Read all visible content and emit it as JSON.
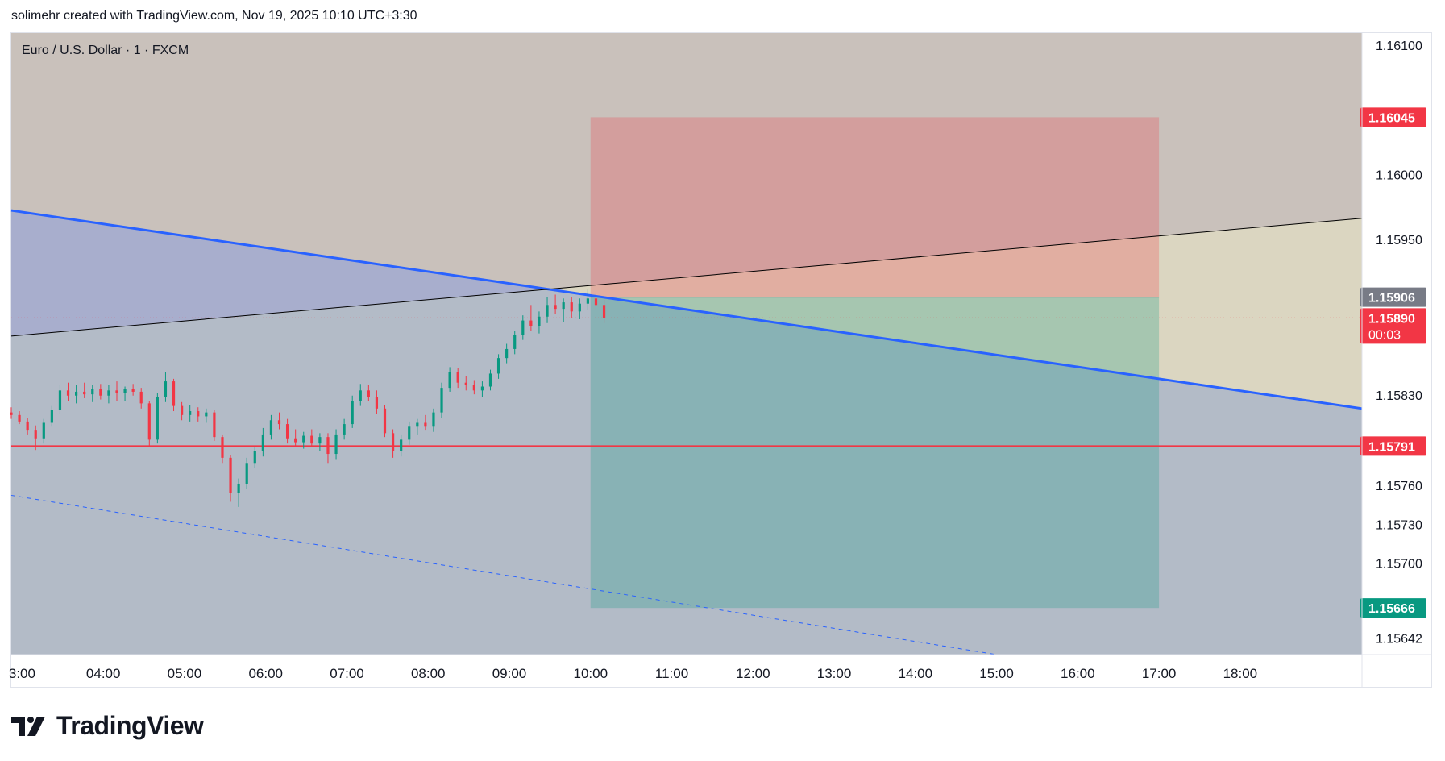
{
  "credit": "solimehr created with TradingView.com, Nov 19, 2025 10:10 UTC+3:30",
  "symbol_label": "Euro / U.S. Dollar · 1 · FXCM",
  "brand": "TradingView",
  "chart_data": {
    "type": "candlestick",
    "instrument": "Euro / U.S. Dollar",
    "interval": "1",
    "source": "FXCM",
    "y_range": [
      1.1563,
      1.1611
    ],
    "x_range": [
      "02:52",
      "19:30"
    ],
    "price_ticks": [
      "1.16100",
      "1.16000",
      "1.15950",
      "1.15830",
      "1.15760",
      "1.15730",
      "1.15700",
      "1.15642"
    ],
    "time_ticks": [
      "3:00",
      "04:00",
      "05:00",
      "06:00",
      "07:00",
      "08:00",
      "09:00",
      "10:00",
      "11:00",
      "12:00",
      "13:00",
      "14:00",
      "15:00",
      "16:00",
      "17:00",
      "18:00"
    ],
    "price_labels": [
      {
        "value": "1.16045",
        "color": "#f23645"
      },
      {
        "value": "1.15906",
        "color": "#787b86"
      },
      {
        "value": "1.15890",
        "color": "#f23645",
        "sub": "00:03"
      },
      {
        "value": "1.15791",
        "color": "#f23645"
      },
      {
        "value": "1.15666",
        "color": "#089981"
      }
    ],
    "horizontal_line": {
      "price": 1.15791,
      "color": "#f23645"
    },
    "last_price": 1.1589,
    "position": {
      "type": "short",
      "entry": 1.15906,
      "stop": 1.16045,
      "target": 1.15666,
      "start": "10:00",
      "end": "17:00"
    },
    "trendlines": [
      {
        "name": "descending-trendline",
        "from": [
          "02:52",
          1.15973
        ],
        "to": [
          "19:30",
          1.1582
        ],
        "color": "#2962ff",
        "width": 3
      },
      {
        "name": "ascending-line",
        "from": [
          "02:52",
          1.15876
        ],
        "to": [
          "19:30",
          1.15967
        ],
        "color": "#000000",
        "width": 1
      },
      {
        "name": "dashed-parallel",
        "from": [
          "02:52",
          1.15753
        ],
        "to": [
          "15:00",
          1.1563
        ],
        "color": "#2962ff",
        "width": 1,
        "dash": true
      }
    ],
    "colors": {
      "up": "#089981",
      "down": "#f23645"
    },
    "candles": [
      {
        "t": "02:52",
        "o": 1.15817,
        "h": 1.15821,
        "l": 1.15812,
        "c": 1.15815
      },
      {
        "t": "02:58",
        "o": 1.15815,
        "h": 1.15818,
        "l": 1.15808,
        "c": 1.1581
      },
      {
        "t": "03:04",
        "o": 1.1581,
        "h": 1.15813,
        "l": 1.158,
        "c": 1.15803
      },
      {
        "t": "03:10",
        "o": 1.15803,
        "h": 1.15807,
        "l": 1.15788,
        "c": 1.15797
      },
      {
        "t": "03:16",
        "o": 1.15797,
        "h": 1.15812,
        "l": 1.15793,
        "c": 1.15809
      },
      {
        "t": "03:22",
        "o": 1.15809,
        "h": 1.15822,
        "l": 1.15806,
        "c": 1.15819
      },
      {
        "t": "03:28",
        "o": 1.15819,
        "h": 1.15838,
        "l": 1.15816,
        "c": 1.15834
      },
      {
        "t": "03:34",
        "o": 1.15834,
        "h": 1.1584,
        "l": 1.15826,
        "c": 1.1583
      },
      {
        "t": "03:40",
        "o": 1.1583,
        "h": 1.15838,
        "l": 1.15824,
        "c": 1.15833
      },
      {
        "t": "03:46",
        "o": 1.15833,
        "h": 1.1584,
        "l": 1.15828,
        "c": 1.15831
      },
      {
        "t": "03:52",
        "o": 1.15831,
        "h": 1.15838,
        "l": 1.15825,
        "c": 1.15835
      },
      {
        "t": "03:58",
        "o": 1.15835,
        "h": 1.15839,
        "l": 1.15827,
        "c": 1.1583
      },
      {
        "t": "04:04",
        "o": 1.1583,
        "h": 1.15838,
        "l": 1.15824,
        "c": 1.15834
      },
      {
        "t": "04:10",
        "o": 1.15834,
        "h": 1.15841,
        "l": 1.15826,
        "c": 1.15832
      },
      {
        "t": "04:16",
        "o": 1.15832,
        "h": 1.15837,
        "l": 1.15826,
        "c": 1.15835
      },
      {
        "t": "04:22",
        "o": 1.15835,
        "h": 1.15839,
        "l": 1.1583,
        "c": 1.15833
      },
      {
        "t": "04:28",
        "o": 1.15833,
        "h": 1.15836,
        "l": 1.1582,
        "c": 1.15824
      },
      {
        "t": "04:34",
        "o": 1.15824,
        "h": 1.15826,
        "l": 1.1579,
        "c": 1.15796
      },
      {
        "t": "04:40",
        "o": 1.15796,
        "h": 1.15832,
        "l": 1.15793,
        "c": 1.15829
      },
      {
        "t": "04:46",
        "o": 1.15829,
        "h": 1.15848,
        "l": 1.15825,
        "c": 1.15841
      },
      {
        "t": "04:52",
        "o": 1.15841,
        "h": 1.15843,
        "l": 1.15818,
        "c": 1.15822
      },
      {
        "t": "04:58",
        "o": 1.15822,
        "h": 1.15825,
        "l": 1.15811,
        "c": 1.15815
      },
      {
        "t": "05:04",
        "o": 1.15815,
        "h": 1.15823,
        "l": 1.1581,
        "c": 1.15818
      },
      {
        "t": "05:10",
        "o": 1.15818,
        "h": 1.15821,
        "l": 1.1581,
        "c": 1.15814
      },
      {
        "t": "05:16",
        "o": 1.15814,
        "h": 1.1582,
        "l": 1.15809,
        "c": 1.15817
      },
      {
        "t": "05:22",
        "o": 1.15817,
        "h": 1.15819,
        "l": 1.15795,
        "c": 1.15798
      },
      {
        "t": "05:28",
        "o": 1.15798,
        "h": 1.158,
        "l": 1.15778,
        "c": 1.15782
      },
      {
        "t": "05:34",
        "o": 1.15782,
        "h": 1.15784,
        "l": 1.15748,
        "c": 1.15755
      },
      {
        "t": "05:40",
        "o": 1.15755,
        "h": 1.15766,
        "l": 1.15744,
        "c": 1.15762
      },
      {
        "t": "05:46",
        "o": 1.15762,
        "h": 1.15782,
        "l": 1.15758,
        "c": 1.15778
      },
      {
        "t": "05:52",
        "o": 1.15778,
        "h": 1.1579,
        "l": 1.15774,
        "c": 1.15787
      },
      {
        "t": "05:58",
        "o": 1.15787,
        "h": 1.15805,
        "l": 1.15783,
        "c": 1.158
      },
      {
        "t": "06:04",
        "o": 1.158,
        "h": 1.15815,
        "l": 1.15796,
        "c": 1.15811
      },
      {
        "t": "06:10",
        "o": 1.15811,
        "h": 1.15817,
        "l": 1.15804,
        "c": 1.15808
      },
      {
        "t": "06:16",
        "o": 1.15808,
        "h": 1.15812,
        "l": 1.15793,
        "c": 1.15797
      },
      {
        "t": "06:22",
        "o": 1.15797,
        "h": 1.15804,
        "l": 1.1579,
        "c": 1.15794
      },
      {
        "t": "06:28",
        "o": 1.15794,
        "h": 1.15802,
        "l": 1.15789,
        "c": 1.15799
      },
      {
        "t": "06:34",
        "o": 1.15799,
        "h": 1.15804,
        "l": 1.1579,
        "c": 1.15793
      },
      {
        "t": "06:40",
        "o": 1.15793,
        "h": 1.15801,
        "l": 1.15787,
        "c": 1.15798
      },
      {
        "t": "06:46",
        "o": 1.15798,
        "h": 1.15801,
        "l": 1.15778,
        "c": 1.15785
      },
      {
        "t": "06:52",
        "o": 1.15785,
        "h": 1.15804,
        "l": 1.15781,
        "c": 1.158
      },
      {
        "t": "06:58",
        "o": 1.158,
        "h": 1.15812,
        "l": 1.15796,
        "c": 1.15808
      },
      {
        "t": "07:04",
        "o": 1.15808,
        "h": 1.1583,
        "l": 1.15805,
        "c": 1.15826
      },
      {
        "t": "07:10",
        "o": 1.15826,
        "h": 1.15839,
        "l": 1.15822,
        "c": 1.15834
      },
      {
        "t": "07:16",
        "o": 1.15834,
        "h": 1.15838,
        "l": 1.15826,
        "c": 1.15829
      },
      {
        "t": "07:22",
        "o": 1.15829,
        "h": 1.15834,
        "l": 1.15816,
        "c": 1.1582
      },
      {
        "t": "07:28",
        "o": 1.1582,
        "h": 1.15823,
        "l": 1.15798,
        "c": 1.15801
      },
      {
        "t": "07:34",
        "o": 1.15801,
        "h": 1.15804,
        "l": 1.15782,
        "c": 1.15787
      },
      {
        "t": "07:40",
        "o": 1.15787,
        "h": 1.158,
        "l": 1.15783,
        "c": 1.15796
      },
      {
        "t": "07:46",
        "o": 1.15796,
        "h": 1.1581,
        "l": 1.15792,
        "c": 1.15806
      },
      {
        "t": "07:52",
        "o": 1.15806,
        "h": 1.15812,
        "l": 1.158,
        "c": 1.15809
      },
      {
        "t": "07:58",
        "o": 1.15809,
        "h": 1.15815,
        "l": 1.15803,
        "c": 1.15806
      },
      {
        "t": "08:04",
        "o": 1.15806,
        "h": 1.1582,
        "l": 1.15802,
        "c": 1.15817
      },
      {
        "t": "08:10",
        "o": 1.15817,
        "h": 1.1584,
        "l": 1.15813,
        "c": 1.15836
      },
      {
        "t": "08:16",
        "o": 1.15836,
        "h": 1.15852,
        "l": 1.15833,
        "c": 1.15848
      },
      {
        "t": "08:22",
        "o": 1.15848,
        "h": 1.15851,
        "l": 1.15836,
        "c": 1.1584
      },
      {
        "t": "08:28",
        "o": 1.1584,
        "h": 1.15845,
        "l": 1.15834,
        "c": 1.15838
      },
      {
        "t": "08:34",
        "o": 1.15838,
        "h": 1.15842,
        "l": 1.15831,
        "c": 1.15834
      },
      {
        "t": "08:40",
        "o": 1.15834,
        "h": 1.15841,
        "l": 1.15829,
        "c": 1.15837
      },
      {
        "t": "08:46",
        "o": 1.15837,
        "h": 1.1585,
        "l": 1.15834,
        "c": 1.15847
      },
      {
        "t": "08:52",
        "o": 1.15847,
        "h": 1.15862,
        "l": 1.15843,
        "c": 1.15859
      },
      {
        "t": "08:58",
        "o": 1.15859,
        "h": 1.1587,
        "l": 1.15855,
        "c": 1.15866
      },
      {
        "t": "09:04",
        "o": 1.15866,
        "h": 1.1588,
        "l": 1.15862,
        "c": 1.15877
      },
      {
        "t": "09:10",
        "o": 1.15877,
        "h": 1.15892,
        "l": 1.15873,
        "c": 1.15888
      },
      {
        "t": "09:16",
        "o": 1.15888,
        "h": 1.159,
        "l": 1.1588,
        "c": 1.15884
      },
      {
        "t": "09:22",
        "o": 1.15884,
        "h": 1.15895,
        "l": 1.15878,
        "c": 1.15891
      },
      {
        "t": "09:28",
        "o": 1.15891,
        "h": 1.15906,
        "l": 1.15886,
        "c": 1.159
      },
      {
        "t": "09:34",
        "o": 1.159,
        "h": 1.15908,
        "l": 1.15893,
        "c": 1.15897
      },
      {
        "t": "09:40",
        "o": 1.15897,
        "h": 1.15905,
        "l": 1.15887,
        "c": 1.15902
      },
      {
        "t": "09:46",
        "o": 1.15902,
        "h": 1.15906,
        "l": 1.1589,
        "c": 1.15895
      },
      {
        "t": "09:52",
        "o": 1.15895,
        "h": 1.15905,
        "l": 1.15889,
        "c": 1.15901
      },
      {
        "t": "09:58",
        "o": 1.15901,
        "h": 1.15912,
        "l": 1.15896,
        "c": 1.15905
      },
      {
        "t": "10:04",
        "o": 1.15905,
        "h": 1.1591,
        "l": 1.15896,
        "c": 1.159
      },
      {
        "t": "10:10",
        "o": 1.159,
        "h": 1.15904,
        "l": 1.15886,
        "c": 1.1589
      }
    ]
  }
}
